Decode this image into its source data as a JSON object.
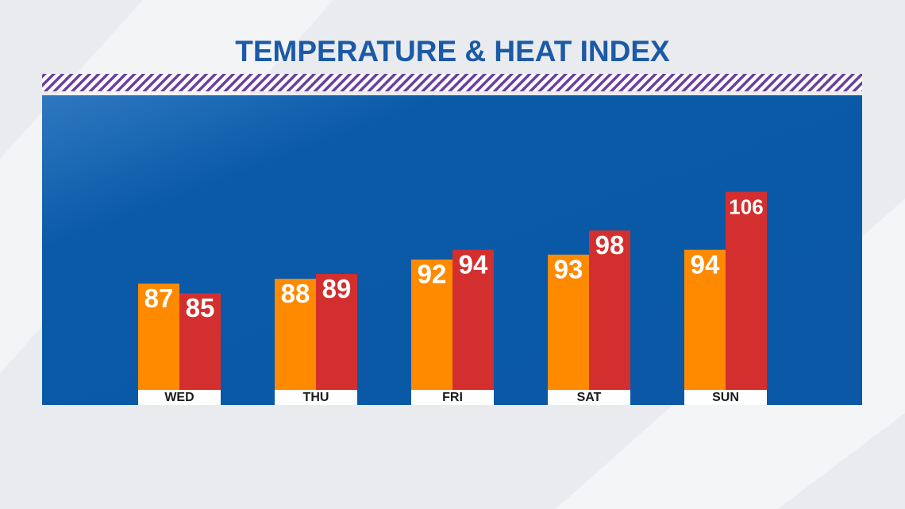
{
  "chart_data": {
    "type": "bar",
    "title": "TEMPERATURE & HEAT INDEX",
    "categories": [
      "WED",
      "THU",
      "FRI",
      "SAT",
      "SUN"
    ],
    "series": [
      {
        "color": "#ff8a00",
        "values": [
          87,
          88,
          92,
          93,
          94
        ]
      },
      {
        "color": "#d32f2f",
        "values": [
          85,
          89,
          94,
          98,
          106
        ]
      }
    ],
    "ylim": [
      65,
      126
    ]
  }
}
